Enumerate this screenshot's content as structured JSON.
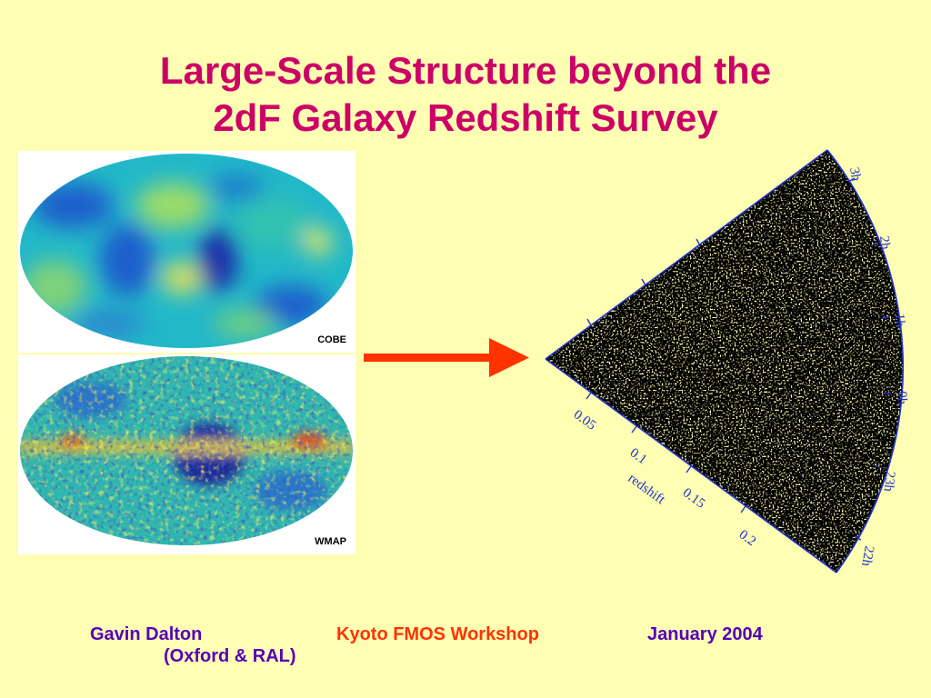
{
  "slide": {
    "title_line1": "Large-Scale Structure beyond the",
    "title_line2": "2dF Galaxy Redshift Survey"
  },
  "maps": {
    "cobe_label": "COBE",
    "wmap_label": "WMAP"
  },
  "wedge": {
    "redshift_ticks": [
      "0.05",
      "0.1",
      "0.15",
      "0.2"
    ],
    "redshift_label": "redshift",
    "ra_ticks": [
      "3h",
      "2h",
      "1h",
      "0h",
      "23h",
      "22h"
    ]
  },
  "footer": {
    "author": "Gavin Dalton",
    "affiliation": "(Oxford & RAL)",
    "event": "Kyoto FMOS Workshop",
    "date": "January 2004"
  },
  "colors": {
    "title": "#CC0066",
    "author": "#5500BB",
    "event": "#FF3300",
    "arrow": "#FF3300",
    "wedge_outline": "#2233CC"
  }
}
